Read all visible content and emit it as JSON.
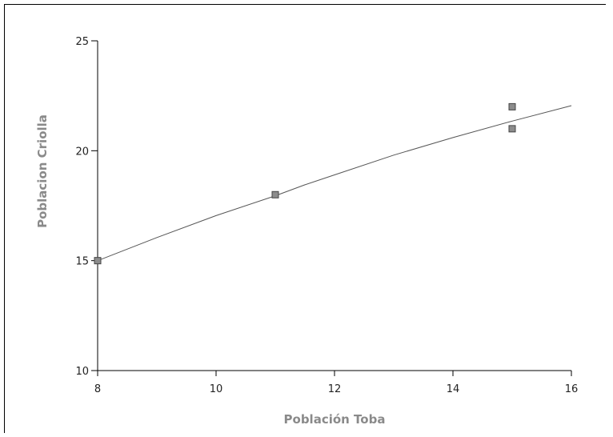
{
  "chart_data": {
    "type": "scatter",
    "xlabel": "Población Toba",
    "ylabel": "Poblacion Criolla",
    "xlim": [
      8,
      16
    ],
    "ylim": [
      10,
      25
    ],
    "x_ticks": [
      8,
      10,
      12,
      14,
      16
    ],
    "y_ticks": [
      10,
      15,
      20,
      25
    ],
    "points": [
      {
        "x": 8,
        "y": 15
      },
      {
        "x": 11,
        "y": 18
      },
      {
        "x": 15,
        "y": 21
      },
      {
        "x": 15,
        "y": 22
      }
    ],
    "trend_line": {
      "x": [
        8,
        9,
        10,
        11,
        11.5,
        12,
        13,
        14,
        15,
        16
      ],
      "y": [
        15,
        16.05,
        17.05,
        17.95,
        18.45,
        18.9,
        19.8,
        20.6,
        21.35,
        22.05
      ]
    },
    "grid": false,
    "legend": "none",
    "colors": {
      "marker_fill": "#8c8c8c",
      "marker_stroke": "#444444",
      "line": "#555555",
      "axis": "#000000",
      "axis_title": "#8a8a8a"
    }
  }
}
